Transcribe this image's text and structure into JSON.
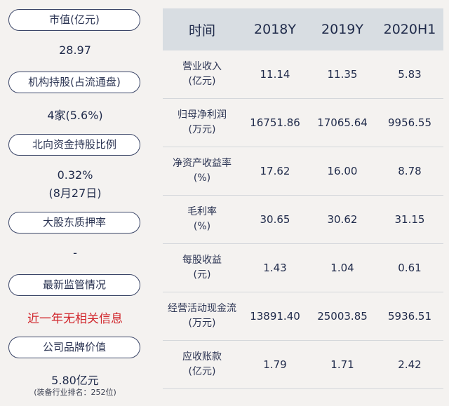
{
  "left_panel": {
    "market_cap": {
      "label": "市值(亿元)",
      "value": "28.97"
    },
    "institutional": {
      "label": "机构持股(占流通盘)",
      "value": "4家(5.6%)"
    },
    "northbound": {
      "label": "北向资金持股比例",
      "value": "0.32%",
      "date": "(8月27日)"
    },
    "pledge": {
      "label": "大股东质押率",
      "value": "-"
    },
    "regulation": {
      "label": "最新监管情况",
      "value": "近一年无相关信息"
    },
    "brand": {
      "label": "公司品牌价值",
      "value": "5.80亿元",
      "rank": "(装备行业排名：252位)"
    }
  },
  "colors": {
    "highlight_red": "#d1262c",
    "header_bg": "#d8dde2",
    "pill_border": "#3b4668",
    "page_bg": "#f4f2f0"
  },
  "table": {
    "headers": [
      "时间",
      "2018Y",
      "2019Y",
      "2020H1"
    ],
    "rows": [
      {
        "name": "营业收入",
        "unit": "(亿元)",
        "values": [
          "11.14",
          "11.35",
          "5.83"
        ]
      },
      {
        "name": "归母净利润",
        "unit": "(万元)",
        "values": [
          "16751.86",
          "17065.64",
          "9956.55"
        ]
      },
      {
        "name": "净资产收益率",
        "unit": "(%)",
        "values": [
          "17.62",
          "16.00",
          "8.78"
        ]
      },
      {
        "name": "毛利率",
        "unit": "(%)",
        "values": [
          "30.65",
          "30.62",
          "31.15"
        ]
      },
      {
        "name": "每股收益",
        "unit": "(元)",
        "values": [
          "1.43",
          "1.04",
          "0.61"
        ]
      },
      {
        "name": "经营活动现金流",
        "unit": "(万元)",
        "values": [
          "13891.40",
          "25003.85",
          "5936.51"
        ]
      },
      {
        "name": "应收账款",
        "unit": "(亿元)",
        "values": [
          "1.79",
          "1.71",
          "2.42"
        ]
      }
    ]
  }
}
